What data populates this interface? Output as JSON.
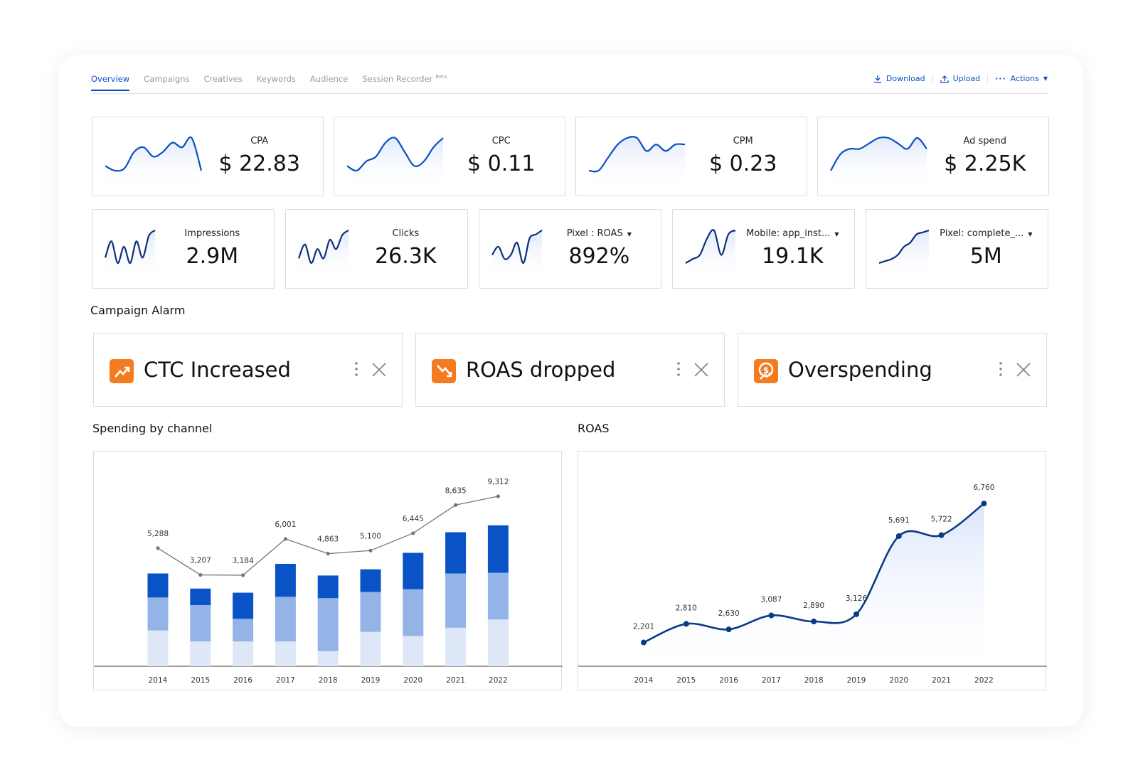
{
  "tabs": [
    {
      "label": "Overview",
      "active": true
    },
    {
      "label": "Campaigns"
    },
    {
      "label": "Creatives"
    },
    {
      "label": "Keywords"
    },
    {
      "label": "Audience"
    },
    {
      "label": "Session Recorder",
      "badge": "Beta"
    }
  ],
  "actions": {
    "download": "Download",
    "upload": "Upload",
    "more": "Actions"
  },
  "kpis_top": [
    {
      "label": "CPA",
      "value": "$ 22.83",
      "trend": [
        3,
        2,
        2.5,
        6,
        7,
        5,
        6,
        8,
        7,
        9,
        2
      ]
    },
    {
      "label": "CPC",
      "value": "$ 0.11",
      "trend": [
        3,
        2,
        4,
        5,
        8,
        9,
        6,
        3,
        4,
        7,
        9
      ]
    },
    {
      "label": "CPM",
      "value": "$ 0.23",
      "trend": [
        2,
        2,
        4,
        6,
        7,
        7,
        5,
        6,
        5,
        6,
        6
      ]
    },
    {
      "label": "Ad spend",
      "value": "$ 2.25K",
      "trend": [
        3,
        6,
        7,
        7,
        8,
        9,
        9,
        8,
        7,
        9,
        7
      ]
    }
  ],
  "kpis_bottom": [
    {
      "label": "Impressions",
      "value": "2.9M",
      "dropdown": false,
      "trend": [
        4,
        7,
        3,
        6,
        3,
        7,
        4,
        8,
        9
      ]
    },
    {
      "label": "Clicks",
      "value": "26.3K",
      "dropdown": false,
      "trend": [
        3,
        6,
        2,
        5,
        3,
        7,
        5,
        8,
        9
      ]
    },
    {
      "label": "Pixel : ROAS",
      "value": "892%",
      "dropdown": true,
      "trend": [
        3,
        5,
        2,
        3,
        6,
        1,
        7,
        8,
        9
      ]
    },
    {
      "label": "Mobile: app_inst...",
      "value": "19.1K",
      "dropdown": true,
      "trend": [
        1,
        2,
        3,
        7,
        9,
        3,
        8,
        9
      ]
    },
    {
      "label": "Pixel: complete_...",
      "value": "5M",
      "dropdown": true,
      "trend": [
        1,
        1.5,
        2,
        3,
        5,
        6,
        8,
        8.5,
        9
      ]
    }
  ],
  "campaign_alarm": {
    "title": "Campaign Alarm",
    "items": [
      {
        "label": "CTC Increased",
        "icon": "trend-up-icon"
      },
      {
        "label": "ROAS dropped",
        "icon": "trend-down-icon"
      },
      {
        "label": "Overspending",
        "icon": "dollar-alert-icon"
      }
    ]
  },
  "colors": {
    "accent": "#0a4fc4",
    "alarm": "#f47b20",
    "bar_dark": "#0a53c6",
    "bar_mid": "#94b3e6",
    "bar_light": "#dde7f7",
    "line": "#777777",
    "roas": "#0b3a87"
  },
  "chart_data": [
    {
      "type": "bar",
      "title": "Spending by channel",
      "categories": [
        "2014",
        "2015",
        "2016",
        "2017",
        "2018",
        "2019",
        "2020",
        "2021",
        "2022"
      ],
      "stacked": true,
      "ylim": [
        0,
        300
      ],
      "series": [
        {
          "values": [
            52,
            36,
            36,
            36,
            22,
            50,
            44,
            56,
            68
          ]
        },
        {
          "values": [
            48,
            53,
            33,
            65,
            77,
            58,
            68,
            79,
            68
          ]
        },
        {
          "values": [
            35,
            24,
            38,
            48,
            33,
            33,
            53,
            60,
            69
          ]
        }
      ],
      "line": {
        "values": [
          5288,
          3207,
          3184,
          6001,
          4863,
          5100,
          6445,
          8635,
          9312
        ],
        "labels": [
          "5,288",
          "3,207",
          "3,184",
          "6,001",
          "4,863",
          "5,100",
          "6,445",
          "8,635",
          "9,312"
        ]
      },
      "grid": false
    },
    {
      "type": "area",
      "title": "ROAS",
      "categories": [
        "2014",
        "2015",
        "2016",
        "2017",
        "2018",
        "2019",
        "2020",
        "2021",
        "2022"
      ],
      "values": [
        2201,
        2810,
        2630,
        3087,
        2890,
        3126,
        5691,
        5722,
        6760
      ],
      "labels": [
        "2,201",
        "2,810",
        "2,630",
        "3,087",
        "2,890",
        "3,126",
        "5,691",
        "5,722",
        "6,760"
      ],
      "ylim": [
        1420,
        8000
      ],
      "grid": false
    }
  ]
}
